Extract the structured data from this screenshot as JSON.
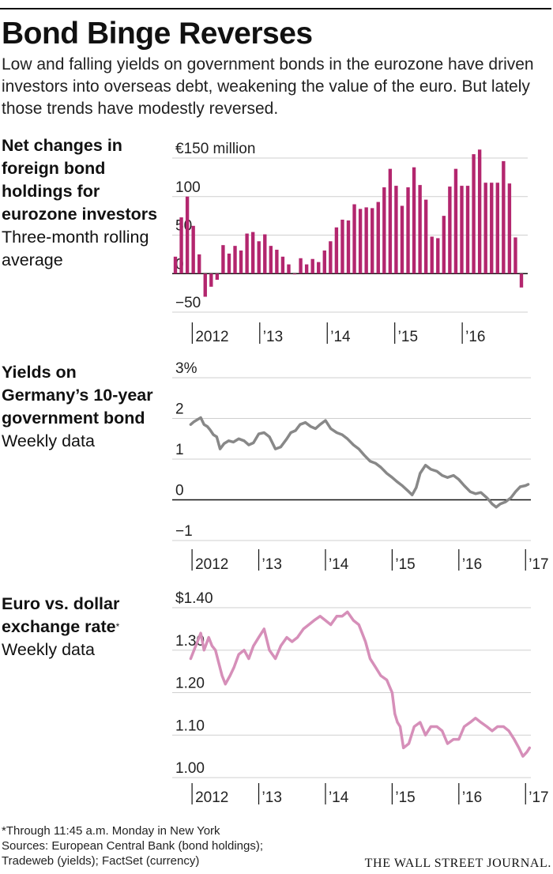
{
  "headline": "Bond Binge Reverses",
  "dek": "Low and falling yields on government bonds in the eurozone have driven investors into overseas debt, weakening the value of the euro. But lately those trends have modestly reversed.",
  "chart_data": [
    {
      "type": "bar",
      "title": "Net changes in foreign bond holdings for eurozone investors",
      "subtitle": "Three-month rolling average",
      "ylim": [
        -50,
        150
      ],
      "yticks": [
        150,
        100,
        50,
        0,
        -50
      ],
      "yticklabels": [
        "€150 million",
        "100",
        "50",
        "0",
        "−50"
      ],
      "xlim": [
        2011.75,
        2016.97
      ],
      "xticks": [
        2012,
        2013,
        2014,
        2015,
        2016
      ],
      "xticklabels": [
        "2012",
        "’13",
        "’14",
        "’15",
        "’16"
      ],
      "color": "#b3266e",
      "values": [
        22,
        73,
        100,
        62,
        25,
        -30,
        -17,
        -8,
        37,
        26,
        36,
        30,
        52,
        54,
        42,
        51,
        36,
        31,
        22,
        12,
        0,
        20,
        12,
        19,
        15,
        30,
        42,
        60,
        70,
        69,
        90,
        84,
        86,
        85,
        93,
        112,
        136,
        114,
        88,
        112,
        138,
        115,
        96,
        48,
        46,
        75,
        113,
        136,
        114,
        114,
        155,
        161,
        118,
        118,
        118,
        146,
        117,
        47,
        -18
      ]
    },
    {
      "type": "line",
      "title": "Yields on Germany’s 10-year government bond",
      "subtitle": "Weekly data",
      "ylim": [
        -1,
        3
      ],
      "yticks": [
        3,
        2,
        1,
        0,
        -1
      ],
      "yticklabels": [
        "3%",
        "2",
        "1",
        "0",
        "−1"
      ],
      "xlim": [
        2011.75,
        2017.08
      ],
      "xticks": [
        2012,
        2013,
        2014,
        2015,
        2016,
        2017
      ],
      "xticklabels": [
        "2012",
        "’13",
        "’14",
        "’15",
        "’16",
        "’17"
      ],
      "color": "#888888",
      "x": [
        2011.98,
        2012.03,
        2012.08,
        2012.13,
        2012.18,
        2012.23,
        2012.27,
        2012.32,
        2012.37,
        2012.42,
        2012.48,
        2012.55,
        2012.62,
        2012.7,
        2012.78,
        2012.85,
        2012.92,
        2013.0,
        2013.08,
        2013.16,
        2013.25,
        2013.33,
        2013.42,
        2013.48,
        2013.55,
        2013.62,
        2013.7,
        2013.78,
        2013.85,
        2013.92,
        2014.0,
        2014.08,
        2014.17,
        2014.25,
        2014.33,
        2014.42,
        2014.5,
        2014.58,
        2014.67,
        2014.75,
        2014.83,
        2014.92,
        2015.0,
        2015.07,
        2015.15,
        2015.25,
        2015.3,
        2015.36,
        2015.42,
        2015.5,
        2015.58,
        2015.67,
        2015.75,
        2015.83,
        2015.92,
        2016.0,
        2016.08,
        2016.17,
        2016.25,
        2016.33,
        2016.42,
        2016.5,
        2016.56,
        2016.62,
        2016.7,
        2016.78,
        2016.85,
        2016.92,
        2017.0,
        2017.04
      ],
      "values": [
        1.85,
        1.92,
        1.97,
        2.02,
        1.85,
        1.8,
        1.72,
        1.6,
        1.55,
        1.25,
        1.38,
        1.45,
        1.42,
        1.5,
        1.45,
        1.35,
        1.4,
        1.62,
        1.65,
        1.55,
        1.25,
        1.3,
        1.5,
        1.65,
        1.7,
        1.85,
        1.9,
        1.8,
        1.75,
        1.85,
        1.95,
        1.75,
        1.65,
        1.6,
        1.5,
        1.35,
        1.25,
        1.1,
        0.95,
        0.9,
        0.8,
        0.65,
        0.55,
        0.45,
        0.35,
        0.2,
        0.12,
        0.3,
        0.65,
        0.85,
        0.75,
        0.7,
        0.6,
        0.55,
        0.6,
        0.5,
        0.35,
        0.2,
        0.15,
        0.18,
        0.05,
        -0.1,
        -0.18,
        -0.1,
        -0.05,
        0.05,
        0.2,
        0.32,
        0.35,
        0.38
      ]
    },
    {
      "type": "line",
      "title": "Euro vs. dollar exchange rate",
      "title_mark": "*",
      "subtitle": "Weekly data",
      "ylim": [
        1.0,
        1.4
      ],
      "yticks": [
        1.4,
        1.3,
        1.2,
        1.1,
        1.0
      ],
      "yticklabels": [
        "$1.40",
        "1.30",
        "1.20",
        "1.10",
        "1.00"
      ],
      "xlim": [
        2011.75,
        2017.08
      ],
      "xticks": [
        2012,
        2013,
        2014,
        2015,
        2016,
        2017
      ],
      "xticklabels": [
        "2012",
        "’13",
        "’14",
        "’15",
        "’16",
        "’17"
      ],
      "color": "#d68fb9",
      "x": [
        2011.98,
        2012.03,
        2012.08,
        2012.13,
        2012.18,
        2012.25,
        2012.3,
        2012.35,
        2012.4,
        2012.45,
        2012.5,
        2012.57,
        2012.63,
        2012.7,
        2012.78,
        2012.85,
        2012.92,
        2013.0,
        2013.08,
        2013.16,
        2013.25,
        2013.33,
        2013.42,
        2013.5,
        2013.58,
        2013.67,
        2013.75,
        2013.83,
        2013.92,
        2014.0,
        2014.08,
        2014.17,
        2014.25,
        2014.33,
        2014.42,
        2014.5,
        2014.55,
        2014.6,
        2014.67,
        2014.75,
        2014.83,
        2014.92,
        2015.0,
        2015.04,
        2015.08,
        2015.12,
        2015.17,
        2015.25,
        2015.33,
        2015.42,
        2015.5,
        2015.58,
        2015.67,
        2015.75,
        2015.83,
        2015.92,
        2016.0,
        2016.08,
        2016.17,
        2016.25,
        2016.33,
        2016.42,
        2016.5,
        2016.58,
        2016.67,
        2016.75,
        2016.83,
        2016.9,
        2016.96,
        2017.02,
        2017.06
      ],
      "values": [
        1.28,
        1.3,
        1.32,
        1.34,
        1.3,
        1.33,
        1.31,
        1.3,
        1.27,
        1.24,
        1.22,
        1.24,
        1.26,
        1.29,
        1.3,
        1.28,
        1.31,
        1.33,
        1.35,
        1.3,
        1.28,
        1.31,
        1.33,
        1.32,
        1.33,
        1.35,
        1.36,
        1.37,
        1.38,
        1.37,
        1.36,
        1.38,
        1.38,
        1.39,
        1.37,
        1.36,
        1.34,
        1.32,
        1.28,
        1.26,
        1.24,
        1.23,
        1.2,
        1.15,
        1.13,
        1.12,
        1.07,
        1.08,
        1.12,
        1.13,
        1.1,
        1.12,
        1.12,
        1.11,
        1.08,
        1.09,
        1.09,
        1.12,
        1.13,
        1.14,
        1.13,
        1.12,
        1.11,
        1.12,
        1.12,
        1.11,
        1.09,
        1.07,
        1.05,
        1.06,
        1.07
      ]
    }
  ],
  "footer": {
    "note": "*Through 11:45 a.m. Monday in New York",
    "sources_1": "Sources: European Central Bank (bond holdings);",
    "sources_2": "Tradeweb (yields); FactSet (currency)"
  },
  "credit": "THE WALL STREET JOURNAL."
}
